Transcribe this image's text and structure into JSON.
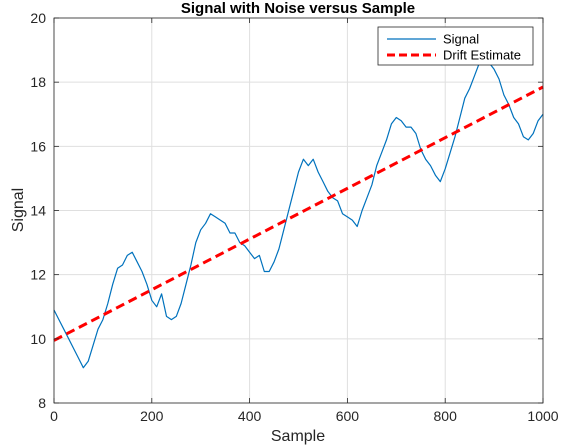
{
  "chart_data": {
    "type": "line",
    "title": "Signal with Noise versus Sample",
    "xlabel": "Sample",
    "ylabel": "Signal",
    "xlim": [
      0,
      1000
    ],
    "ylim": [
      8,
      20
    ],
    "xticks": [
      0,
      200,
      400,
      600,
      800,
      1000
    ],
    "yticks": [
      8,
      10,
      12,
      14,
      16,
      18,
      20
    ],
    "grid": true,
    "legend_position": "top-right",
    "series": [
      {
        "name": "Signal",
        "color": "#0072BD",
        "style": "solid",
        "x": [
          0,
          10,
          20,
          30,
          40,
          50,
          60,
          70,
          80,
          90,
          100,
          110,
          120,
          130,
          140,
          150,
          160,
          170,
          180,
          190,
          200,
          210,
          220,
          230,
          240,
          250,
          260,
          270,
          280,
          290,
          300,
          310,
          320,
          330,
          340,
          350,
          360,
          370,
          380,
          390,
          400,
          410,
          420,
          430,
          440,
          450,
          460,
          470,
          480,
          490,
          500,
          510,
          520,
          530,
          540,
          550,
          560,
          570,
          580,
          590,
          600,
          610,
          620,
          630,
          640,
          650,
          660,
          670,
          680,
          690,
          700,
          710,
          720,
          730,
          740,
          750,
          760,
          770,
          780,
          790,
          800,
          810,
          820,
          830,
          840,
          850,
          860,
          870,
          880,
          890,
          900,
          910,
          920,
          930,
          940,
          950,
          960,
          970,
          980,
          990,
          1000
        ],
        "y": [
          10.9,
          10.6,
          10.3,
          10.0,
          9.7,
          9.4,
          9.1,
          9.3,
          9.8,
          10.3,
          10.6,
          11.1,
          11.7,
          12.2,
          12.3,
          12.6,
          12.7,
          12.4,
          12.1,
          11.7,
          11.2,
          11.0,
          11.4,
          10.7,
          10.6,
          10.7,
          11.1,
          11.7,
          12.3,
          13.0,
          13.4,
          13.6,
          13.9,
          13.8,
          13.7,
          13.6,
          13.3,
          13.3,
          13.0,
          12.9,
          12.7,
          12.5,
          12.6,
          12.1,
          12.1,
          12.4,
          12.8,
          13.4,
          14.0,
          14.6,
          15.2,
          15.6,
          15.4,
          15.6,
          15.2,
          14.9,
          14.6,
          14.4,
          14.3,
          13.9,
          13.8,
          13.7,
          13.5,
          14.0,
          14.4,
          14.8,
          15.4,
          15.8,
          16.2,
          16.7,
          16.9,
          16.8,
          16.6,
          16.6,
          16.4,
          15.9,
          15.6,
          15.4,
          15.1,
          14.9,
          15.3,
          15.8,
          16.3,
          16.9,
          17.5,
          17.8,
          18.2,
          18.6,
          18.8,
          18.6,
          18.4,
          18.1,
          17.6,
          17.3,
          16.9,
          16.7,
          16.3,
          16.2,
          16.4,
          16.8,
          17.0
        ]
      },
      {
        "name": "Drift Estimate",
        "color": "#FF0000",
        "style": "dashed",
        "x": [
          0,
          1000
        ],
        "y": [
          9.95,
          17.85
        ]
      }
    ]
  }
}
